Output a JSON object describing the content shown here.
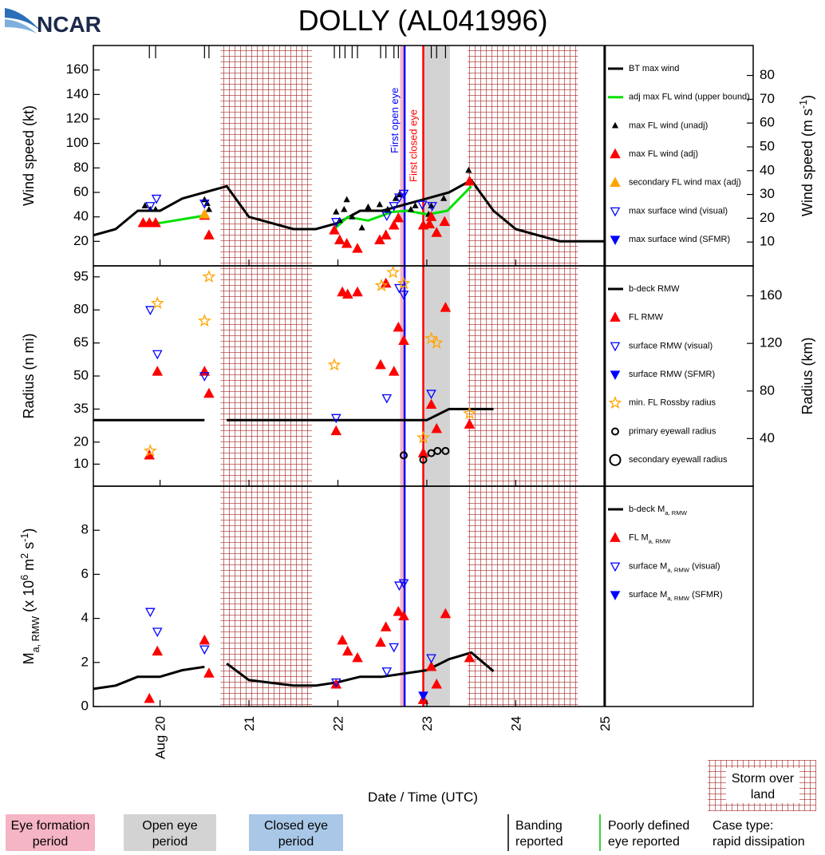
{
  "logo": "NCAR",
  "title": "DOLLY (AL041996)",
  "periods": {
    "eye_formation": [
      22.7,
      22.75
    ],
    "open_eye": [
      22.96,
      23.26
    ],
    "over_land": [
      [
        20.68,
        21.71
      ],
      [
        23.46,
        24.7
      ]
    ]
  },
  "events": [
    {
      "label": "First open eye",
      "x": 22.75,
      "color": "#0000ff"
    },
    {
      "label": "First closed eye",
      "x": 22.96,
      "color": "#ff0000"
    }
  ],
  "banding_times": [
    19.88,
    19.95,
    20.5,
    20.55,
    21.96,
    22.02,
    22.08,
    22.16,
    22.22,
    22.48,
    22.54,
    22.63,
    22.68,
    22.96,
    23.05,
    23.11,
    23.21
  ],
  "track_end": 25,
  "chart_data": [
    {
      "type": "scatter",
      "ylabel": "Wind speed (kt)",
      "y2label": [
        {
          "text": "Wind speed (m s"
        },
        {
          "text": "-1",
          "shift": "super"
        },
        {
          "text": ")"
        }
      ],
      "ylim": [
        0,
        180
      ],
      "yticks": [
        20,
        40,
        60,
        80,
        100,
        120,
        140,
        160
      ],
      "y2lim": [
        0,
        92.6
      ],
      "y2ticks": [
        10,
        20,
        30,
        40,
        50,
        60,
        70,
        80
      ],
      "series": [
        {
          "name": "BT max wind",
          "marker": "line",
          "color": "#000000",
          "x": [
            19.25,
            19.5,
            19.75,
            20,
            20.25,
            20.5,
            20.75,
            21,
            21.25,
            21.5,
            21.75,
            22,
            22.25,
            22.5,
            22.75,
            23,
            23.25,
            23.5,
            23.75,
            24,
            24.25,
            24.5,
            24.75,
            25
          ],
          "values": [
            25,
            30,
            45,
            45,
            55,
            60,
            65,
            40,
            35,
            30,
            30,
            35,
            45,
            45,
            50,
            55,
            60,
            70,
            45,
            30,
            25,
            20,
            20,
            20
          ]
        },
        {
          "name": "adj max FL wind (upper bound)",
          "marker": "line",
          "color": "#00e000",
          "x": [
            19.79,
            20,
            20.5,
            21.25,
            21.96,
            22.11,
            22.34,
            22.61,
            22.78,
            23.01,
            23.23,
            23.5
          ],
          "values": [
            35,
            35,
            41,
            null,
            30,
            40,
            37,
            44,
            45,
            42,
            45,
            65
          ]
        },
        {
          "name": "max FL wind (unadj)",
          "marker": "small-triangle",
          "color": "#000000",
          "x": [
            19.83,
            19.89,
            19.95,
            20.5,
            20.53,
            20.55,
            21.98,
            22.02,
            22.07,
            22.1,
            22.16,
            22.27,
            22.34,
            22.47,
            22.56,
            22.65,
            22.69,
            22.82,
            22.87,
            23.02,
            23.05,
            23.19,
            23.47
          ],
          "values": [
            49,
            46,
            46,
            54,
            51,
            46,
            44,
            37,
            46,
            54,
            40,
            31,
            48,
            50,
            46,
            55,
            58,
            46,
            49,
            42,
            49,
            55,
            78
          ]
        },
        {
          "name": "max FL wind (adj)",
          "marker": "triangle",
          "color": "#ff0000",
          "x": [
            19.81,
            19.88,
            19.95,
            20.5,
            20.55,
            21.96,
            22.02,
            22.1,
            22.22,
            22.47,
            22.54,
            22.63,
            22.68,
            22.96,
            23.03,
            23.05,
            23.11,
            23.2,
            23.48
          ],
          "values": [
            35,
            35,
            35,
            41,
            25,
            29,
            21,
            18,
            14,
            21,
            25,
            33,
            39,
            33,
            34,
            40,
            27,
            36,
            69
          ]
        },
        {
          "name": "secondary FL wind max (adj)",
          "marker": "triangle",
          "color": "#ffa500",
          "x": [
            20.5
          ],
          "values": [
            42
          ]
        },
        {
          "name": "max surface wind (visual)",
          "marker": "open-down-triangle",
          "color": "#0000ff",
          "x": [
            19.89,
            19.96,
            20.5,
            21.98,
            22.55,
            22.63,
            22.69,
            22.74,
            22.95,
            23.06
          ],
          "values": [
            49,
            55,
            51,
            36,
            41,
            49,
            56,
            59,
            50,
            49
          ]
        },
        {
          "name": "max surface wind (SFMR)",
          "marker": "down-triangle",
          "color": "#0000ff",
          "x": [],
          "values": []
        }
      ]
    },
    {
      "type": "scatter",
      "ylabel": "Radius (n mi)",
      "y2label": "Radius (km)",
      "ylim": [
        0,
        100
      ],
      "yticks": [
        10,
        20,
        35,
        50,
        65,
        80,
        95
      ],
      "y2lim": [
        0,
        185.2
      ],
      "y2ticks": [
        40,
        80,
        120,
        160
      ],
      "series": [
        {
          "name": "b-deck RMW",
          "marker": "line",
          "color": "#000000",
          "x": [
            19.25,
            20.5,
            20.62,
            20.75,
            23,
            23.25,
            23.75
          ],
          "values": [
            30,
            30,
            null,
            30,
            30,
            35,
            35
          ]
        },
        {
          "name": "FL RMW",
          "marker": "triangle",
          "color": "#ff0000",
          "x": [
            19.88,
            19.97,
            20.5,
            20.55,
            21.98,
            22.05,
            22.11,
            22.22,
            22.48,
            22.54,
            22.63,
            22.68,
            22.74,
            22.96,
            23.05,
            23.11,
            23.21,
            23.48
          ],
          "values": [
            14,
            52,
            52,
            42,
            25,
            88,
            87,
            88,
            55,
            92,
            52,
            72,
            66,
            15,
            37,
            26,
            81,
            28
          ]
        },
        {
          "name": "surface RMW (visual)",
          "marker": "open-down-triangle",
          "color": "#0000ff",
          "x": [
            19.89,
            19.97,
            20.5,
            21.98,
            22.55,
            22.69,
            22.74,
            23.05
          ],
          "values": [
            80,
            60,
            50,
            31,
            40,
            90,
            87,
            42
          ]
        },
        {
          "name": "surface RMW (SFMR)",
          "marker": "down-triangle",
          "color": "#0000ff",
          "x": [],
          "values": []
        },
        {
          "name": "min. FL Rossby radius",
          "marker": "open-star",
          "color": "#ffa500",
          "x": [
            19.89,
            19.97,
            20.5,
            20.55,
            21.96,
            22.49,
            22.62,
            22.74,
            22.96,
            23.05,
            23.11,
            23.48
          ],
          "values": [
            16,
            83,
            75,
            95,
            55,
            91,
            97,
            92,
            22,
            67,
            65,
            33
          ]
        },
        {
          "name": "primary eyewall radius",
          "marker": "open-circle",
          "color": "#000000",
          "x": [
            22.74,
            22.96,
            23.05,
            23.12,
            23.21
          ],
          "values": [
            14,
            12,
            15,
            16,
            16
          ]
        },
        {
          "name": "secondary eyewall radius",
          "marker": "large-open-circle",
          "color": "#000000",
          "x": [],
          "values": []
        }
      ]
    },
    {
      "type": "scatter",
      "ylabel": [
        {
          "text": "M"
        },
        {
          "text": "a, RMW",
          "shift": "sub"
        },
        {
          "text": " (x 10"
        },
        {
          "text": "6",
          "shift": "super"
        },
        {
          "text": " m"
        },
        {
          "text": "2",
          "shift": "super"
        },
        {
          "text": " s"
        },
        {
          "text": "-1",
          "shift": "super"
        },
        {
          "text": ")"
        }
      ],
      "ylim": [
        0,
        10
      ],
      "yticks": [
        0,
        2,
        4,
        6,
        8
      ],
      "xlabel": "Date / Time (UTC)",
      "xlim": [
        19.25,
        26.67
      ],
      "xticks": [
        {
          "value": 20,
          "label": "Aug 20"
        },
        21,
        22,
        23,
        24,
        25
      ],
      "series": [
        {
          "name": [
            {
              "text": "b-deck M"
            },
            {
              "text": "a, RMW",
              "shift": "sub"
            }
          ],
          "marker": "line",
          "color": "#000000",
          "x": [
            19.25,
            19.5,
            19.75,
            20,
            20.25,
            20.5,
            20.62,
            20.75,
            21,
            21.5,
            21.75,
            22,
            22.25,
            22.5,
            22.75,
            23,
            23.25,
            23.5,
            23.75
          ],
          "values": [
            0.8,
            0.95,
            1.35,
            1.35,
            1.65,
            1.8,
            null,
            1.95,
            1.2,
            0.95,
            0.95,
            1.1,
            1.35,
            1.35,
            1.5,
            1.65,
            2.15,
            2.45,
            1.6
          ]
        },
        {
          "name": [
            {
              "text": "FL M"
            },
            {
              "text": "a, RMW",
              "shift": "sub"
            }
          ],
          "marker": "triangle",
          "color": "#ff0000",
          "x": [
            19.88,
            19.97,
            20.5,
            20.55,
            21.98,
            22.05,
            22.11,
            22.22,
            22.48,
            22.54,
            22.68,
            22.74,
            22.96,
            23.05,
            23.11,
            23.21,
            23.48
          ],
          "values": [
            0.35,
            2.5,
            3.0,
            1.5,
            1.0,
            3.0,
            2.5,
            2.2,
            2.9,
            3.6,
            4.3,
            4.1,
            0.3,
            1.8,
            1.0,
            4.2,
            2.2
          ]
        },
        {
          "name": [
            {
              "text": "surface M"
            },
            {
              "text": "a, RMW",
              "shift": "sub"
            },
            {
              "text": " (visual)"
            }
          ],
          "marker": "open-down-triangle",
          "color": "#0000ff",
          "x": [
            19.89,
            19.97,
            20.5,
            21.98,
            22.55,
            22.63,
            22.69,
            22.74,
            23.05
          ],
          "values": [
            4.3,
            3.4,
            2.6,
            1.1,
            1.6,
            2.7,
            5.5,
            5.6,
            2.2
          ]
        },
        {
          "name": [
            {
              "text": "surface M"
            },
            {
              "text": "a, RMW",
              "shift": "sub"
            },
            {
              "text": " (SFMR)"
            }
          ],
          "marker": "down-triangle",
          "color": "#0000ff",
          "x": [
            22.96
          ],
          "values": [
            0.5
          ]
        }
      ]
    }
  ],
  "footer": {
    "eye_formation": [
      "Eye formation",
      "period"
    ],
    "open_eye": [
      "Open eye",
      "period"
    ],
    "closed_eye": [
      "Closed eye",
      "period"
    ],
    "banding": [
      "Banding",
      "reported"
    ],
    "poorly_defined": [
      "Poorly defined",
      "eye reported"
    ],
    "case_type": [
      "Case type:",
      "rapid dissipation"
    ],
    "over_land": [
      "Storm over",
      "land"
    ]
  }
}
